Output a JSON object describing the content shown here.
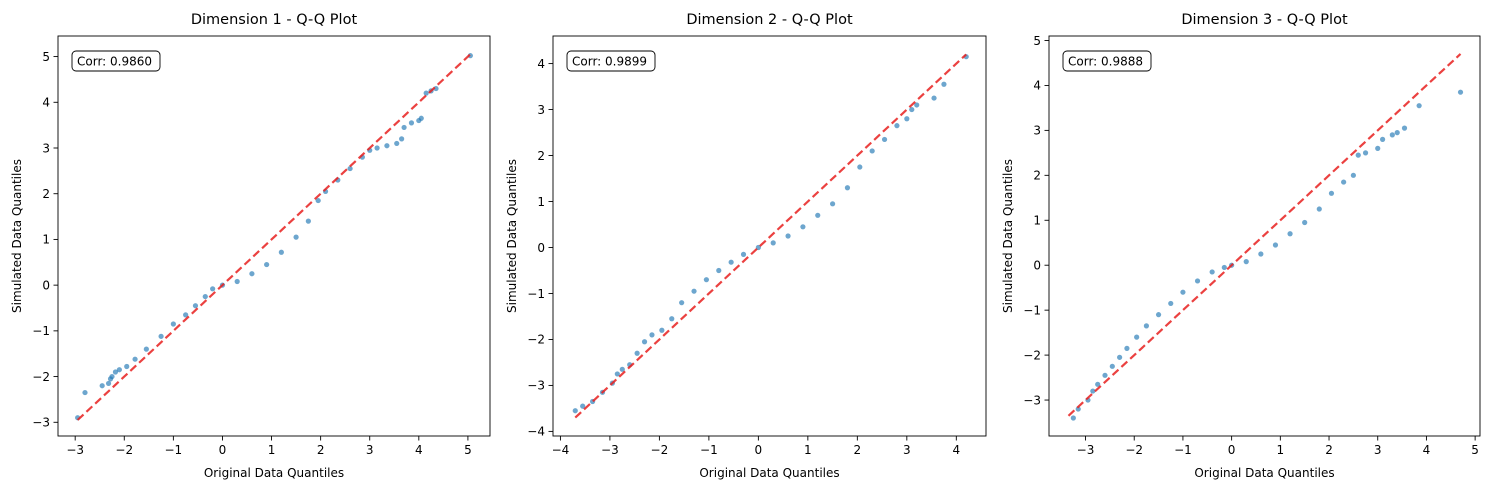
{
  "chart_data": [
    {
      "type": "scatter",
      "title": "Dimension 1 - Q-Q Plot",
      "xlabel": "Original Data Quantiles",
      "ylabel": "Simulated Data Quantiles",
      "xlim": [
        -3.35,
        5.45
      ],
      "ylim": [
        -3.3,
        5.45
      ],
      "xticks": [
        -3,
        -2,
        -1,
        0,
        1,
        2,
        3,
        4,
        5
      ],
      "yticks": [
        -3,
        -2,
        -1,
        0,
        1,
        2,
        3,
        4,
        5
      ],
      "reference_line": {
        "start": [
          -2.95,
          -2.95
        ],
        "end": [
          5.05,
          5.05
        ]
      },
      "annotation": "Corr: 0.9860",
      "series": [
        {
          "name": "quantiles",
          "x": [
            -2.95,
            -2.8,
            -2.45,
            -2.32,
            -2.28,
            -2.25,
            -2.18,
            -2.1,
            -1.95,
            -1.78,
            -1.55,
            -1.25,
            -1.0,
            -0.75,
            -0.55,
            -0.35,
            -0.2,
            0.0,
            0.3,
            0.6,
            0.9,
            1.2,
            1.5,
            1.75,
            1.95,
            2.1,
            2.35,
            2.6,
            2.85,
            3.0,
            3.15,
            3.35,
            3.55,
            3.65,
            3.7,
            3.85,
            4.0,
            4.05,
            4.15,
            4.25,
            4.35,
            5.05
          ],
          "y": [
            -2.9,
            -2.35,
            -2.2,
            -2.15,
            -2.05,
            -2.0,
            -1.9,
            -1.85,
            -1.78,
            -1.62,
            -1.4,
            -1.12,
            -0.85,
            -0.65,
            -0.45,
            -0.25,
            -0.08,
            0.0,
            0.08,
            0.25,
            0.45,
            0.72,
            1.05,
            1.4,
            1.85,
            2.05,
            2.3,
            2.55,
            2.8,
            2.95,
            3.0,
            3.05,
            3.1,
            3.2,
            3.45,
            3.55,
            3.6,
            3.65,
            4.2,
            4.25,
            4.3,
            5.02
          ]
        }
      ]
    },
    {
      "type": "scatter",
      "title": "Dimension 2 - Q-Q Plot",
      "xlabel": "Original Data Quantiles",
      "ylabel": "Simulated Data Quantiles",
      "xlim": [
        -4.15,
        4.6
      ],
      "ylim": [
        -4.1,
        4.6
      ],
      "xticks": [
        -4,
        -3,
        -2,
        -1,
        0,
        1,
        2,
        3,
        4
      ],
      "yticks": [
        -4,
        -3,
        -2,
        -1,
        0,
        1,
        2,
        3,
        4
      ],
      "reference_line": {
        "start": [
          -3.7,
          -3.7
        ],
        "end": [
          4.2,
          4.2
        ]
      },
      "annotation": "Corr: 0.9899",
      "series": [
        {
          "name": "quantiles",
          "x": [
            -3.7,
            -3.55,
            -3.35,
            -3.15,
            -2.95,
            -2.85,
            -2.75,
            -2.6,
            -2.45,
            -2.3,
            -2.15,
            -1.95,
            -1.75,
            -1.55,
            -1.3,
            -1.05,
            -0.8,
            -0.55,
            -0.3,
            0.0,
            0.3,
            0.6,
            0.9,
            1.2,
            1.5,
            1.8,
            2.05,
            2.3,
            2.55,
            2.8,
            3.0,
            3.1,
            3.2,
            3.55,
            3.75,
            4.2
          ],
          "y": [
            -3.55,
            -3.45,
            -3.35,
            -3.15,
            -2.95,
            -2.75,
            -2.65,
            -2.55,
            -2.3,
            -2.05,
            -1.9,
            -1.8,
            -1.55,
            -1.2,
            -0.95,
            -0.7,
            -0.5,
            -0.32,
            -0.15,
            0.0,
            0.1,
            0.25,
            0.45,
            0.7,
            0.95,
            1.3,
            1.75,
            2.1,
            2.35,
            2.65,
            2.8,
            3.0,
            3.1,
            3.25,
            3.55,
            4.15
          ]
        }
      ]
    },
    {
      "type": "scatter",
      "title": "Dimension 3 - Q-Q Plot",
      "xlabel": "Original Data Quantiles",
      "ylabel": "Simulated Data Quantiles",
      "xlim": [
        -3.75,
        5.1
      ],
      "ylim": [
        -3.8,
        5.1
      ],
      "xticks": [
        -3,
        -2,
        -1,
        0,
        1,
        2,
        3,
        4,
        5
      ],
      "yticks": [
        -3,
        -2,
        -1,
        0,
        1,
        2,
        3,
        4,
        5
      ],
      "reference_line": {
        "start": [
          -3.35,
          -3.35
        ],
        "end": [
          4.7,
          4.7
        ]
      },
      "annotation": "Corr: 0.9888",
      "series": [
        {
          "name": "quantiles",
          "x": [
            -3.25,
            -3.15,
            -2.95,
            -2.85,
            -2.75,
            -2.6,
            -2.45,
            -2.3,
            -2.15,
            -1.95,
            -1.75,
            -1.5,
            -1.25,
            -1.0,
            -0.7,
            -0.4,
            -0.15,
            0.0,
            0.3,
            0.6,
            0.9,
            1.2,
            1.5,
            1.8,
            2.05,
            2.3,
            2.5,
            2.6,
            2.75,
            3.0,
            3.1,
            3.3,
            3.4,
            3.55,
            3.85,
            4.7
          ],
          "y": [
            -3.4,
            -3.2,
            -3.0,
            -2.8,
            -2.65,
            -2.45,
            -2.25,
            -2.05,
            -1.85,
            -1.6,
            -1.35,
            -1.1,
            -0.85,
            -0.6,
            -0.35,
            -0.15,
            -0.05,
            0.0,
            0.08,
            0.25,
            0.45,
            0.7,
            0.95,
            1.25,
            1.6,
            1.85,
            2.0,
            2.45,
            2.5,
            2.6,
            2.8,
            2.9,
            2.95,
            3.05,
            3.55,
            3.85
          ]
        }
      ]
    }
  ]
}
